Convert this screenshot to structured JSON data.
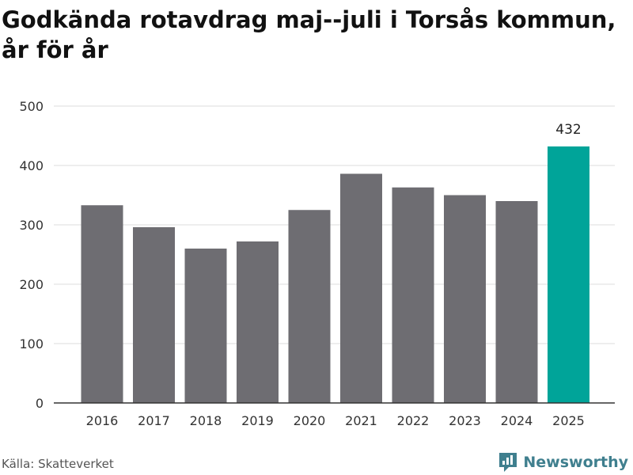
{
  "title": "Godkända rotavdrag maj--juli i Torsås kommun, år för år",
  "source": "Källa: Skatteverket",
  "brand": "Newsworthy",
  "colors": {
    "bar": "#6e6d72",
    "highlight": "#00a499",
    "grid": "#dddddd",
    "axis": "#333333",
    "brand": "#3f7f8e"
  },
  "chart_data": {
    "type": "bar",
    "categories": [
      "2016",
      "2017",
      "2018",
      "2019",
      "2020",
      "2021",
      "2022",
      "2023",
      "2024",
      "2025"
    ],
    "values": [
      333,
      296,
      260,
      272,
      325,
      386,
      363,
      350,
      340,
      432
    ],
    "highlight_index": 9,
    "data_labels": [
      {
        "index": 9,
        "text": "432"
      }
    ],
    "ylim": [
      0,
      500
    ],
    "yticks": [
      0,
      100,
      200,
      300,
      400,
      500
    ],
    "grid": true
  }
}
